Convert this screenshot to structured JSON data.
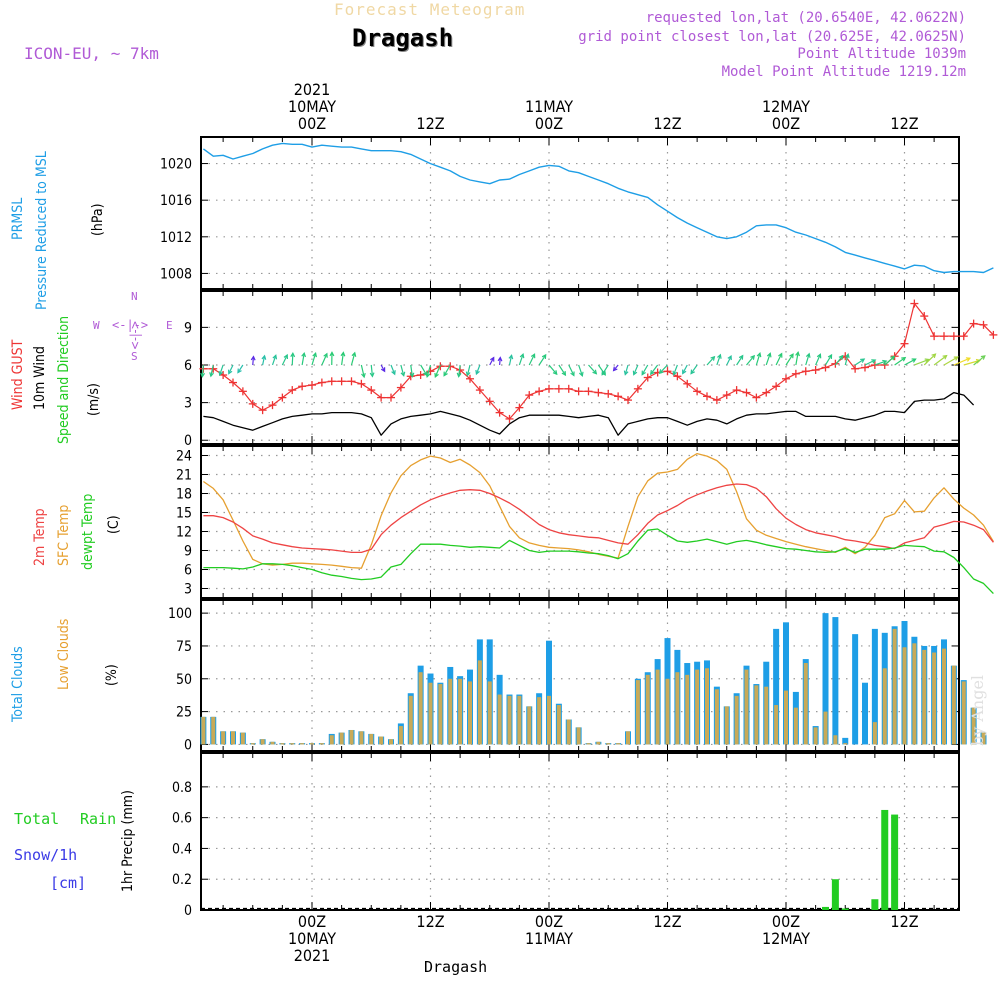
{
  "header": {
    "title": "Forecast Meteogram",
    "location": "Dragash",
    "model": "ICON-EU, ~ 7km",
    "requested": "requested lon,lat (20.6540E, 42.0622N)",
    "grid_point": "grid point closest lon,lat (20.625E, 42.0625N)",
    "point_altitude": "Point Altitude 1039m",
    "model_altitude": "Model Point Altitude 1219.12m",
    "watermark": "by Angel",
    "footer": "Dragash"
  },
  "colors": {
    "pressure": "#1e9ee6",
    "gust": "#ee3333",
    "wind": "#000000",
    "temp2m": "#ee4444",
    "sfc": "#e6a030",
    "dewpt": "#22cc22",
    "total_clouds": "#1e9ee6",
    "low_clouds": "#c8aa58",
    "rain": "#22cc22",
    "snow": "#3a3ae6",
    "purple": "#b05ad6"
  },
  "time_axis": {
    "top_labels": [
      {
        "hour": 0,
        "lines": [
          "2021",
          "10MAY",
          "00Z"
        ]
      },
      {
        "hour": 12,
        "lines": [
          "12Z"
        ]
      },
      {
        "hour": 24,
        "lines": [
          "11MAY",
          "00Z"
        ]
      },
      {
        "hour": 36,
        "lines": [
          "12Z"
        ]
      },
      {
        "hour": 48,
        "lines": [
          "12MAY",
          "00Z"
        ]
      },
      {
        "hour": 60,
        "lines": [
          "12Z"
        ]
      }
    ],
    "bottom_labels": [
      {
        "hour": 0,
        "lines": [
          "00Z",
          "10MAY",
          "2021"
        ]
      },
      {
        "hour": 12,
        "lines": [
          "12Z"
        ]
      },
      {
        "hour": 24,
        "lines": [
          "00Z",
          "11MAY"
        ]
      },
      {
        "hour": 36,
        "lines": [
          "12Z"
        ]
      },
      {
        "hour": 48,
        "lines": [
          "00Z",
          "12MAY"
        ]
      },
      {
        "hour": 60,
        "lines": [
          "12Z"
        ]
      }
    ]
  },
  "panel_labels": {
    "pressure": {
      "lines": [
        "PRMSL",
        "Pressure Reduced to MSL"
      ],
      "unit": "(hPa)"
    },
    "wind": {
      "gust": "Wind GUST",
      "wind10": "10m Wind",
      "speeddir": "Speed and Direction",
      "unit": "(m/s)",
      "compass": {
        "w": "W",
        "e": "E",
        "n": "N",
        "s": "S",
        "h": "<-|->",
        "v": "<-|->"
      }
    },
    "temp": {
      "t2m": "2m Temp",
      "sfc": "SFC Temp",
      "dewpt": "dewpt Temp",
      "unit": "(C)"
    },
    "clouds": {
      "total": "Total Clouds",
      "low": "Low Clouds",
      "unit": "(%)"
    },
    "precip": {
      "rain_total": "Total",
      "rain": "Rain",
      "snow": "Snow/1h",
      "snow_unit": "[cm]",
      "unit": "1hr Precip (mm)"
    }
  },
  "chart_data": [
    {
      "type": "line",
      "panel": "pressure",
      "title": "PRMSL Pressure Reduced to MSL",
      "ylabel": "(hPa)",
      "ylim": [
        1006.3,
        1022.9
      ],
      "yticks": [
        1008,
        1012,
        1016,
        1020
      ],
      "x_start": -11,
      "x_step": 1,
      "series": [
        {
          "name": "PRMSL",
          "values": [
            1021.6,
            1020.8,
            1020.9,
            1020.5,
            1020.8,
            1021.1,
            1021.6,
            1022.0,
            1022.2,
            1022.1,
            1022.1,
            1021.8,
            1022.0,
            1021.9,
            1021.8,
            1021.8,
            1021.6,
            1021.4,
            1021.4,
            1021.4,
            1021.3,
            1021.0,
            1020.5,
            1020.0,
            1019.6,
            1019.2,
            1018.6,
            1018.2,
            1018.0,
            1017.8,
            1018.2,
            1018.3,
            1018.8,
            1019.2,
            1019.6,
            1019.8,
            1019.7,
            1019.2,
            1019.0,
            1018.6,
            1018.2,
            1017.8,
            1017.3,
            1016.9,
            1016.6,
            1016.3,
            1015.5,
            1014.8,
            1014.1,
            1013.5,
            1013.0,
            1012.5,
            1012.0,
            1011.8,
            1012.0,
            1012.5,
            1013.2,
            1013.3,
            1013.3,
            1013.0,
            1012.5,
            1012.2,
            1011.8,
            1011.4,
            1010.9,
            1010.3,
            1010.0,
            1009.7,
            1009.4,
            1009.1,
            1008.8,
            1008.5,
            1008.9,
            1008.8,
            1008.3,
            1008.1,
            1008.2,
            1008.2,
            1008.2,
            1008.1,
            1008.6
          ]
        }
      ]
    },
    {
      "type": "line",
      "panel": "wind",
      "title": "Wind GUST / 10m Wind Speed and Direction",
      "ylabel": "(m/s)",
      "ylim": [
        -0.3,
        11.9
      ],
      "yticks": [
        0,
        3,
        6,
        9
      ],
      "x_start": -11,
      "x_step": 1,
      "series": [
        {
          "name": "Wind GUST",
          "values": [
            5.7,
            5.7,
            5.2,
            4.6,
            3.9,
            2.9,
            2.4,
            2.8,
            3.4,
            4.0,
            4.3,
            4.4,
            4.6,
            4.7,
            4.7,
            4.7,
            4.5,
            4.0,
            3.4,
            3.4,
            4.2,
            5.1,
            5.2,
            5.5,
            5.9,
            5.9,
            5.6,
            4.9,
            4.0,
            3.1,
            2.2,
            1.7,
            2.6,
            3.6,
            3.9,
            4.1,
            4.1,
            4.1,
            3.9,
            3.9,
            3.8,
            3.7,
            3.5,
            3.2,
            4.1,
            5.0,
            5.4,
            5.5,
            5.1,
            4.5,
            3.9,
            3.5,
            3.2,
            3.6,
            4.0,
            3.8,
            3.4,
            3.8,
            4.3,
            4.9,
            5.3,
            5.5,
            5.6,
            5.8,
            6.1,
            6.7,
            5.7,
            5.8,
            6.0,
            6.0,
            6.7,
            7.7,
            10.9,
            9.9,
            8.3,
            8.3,
            8.3,
            8.3,
            9.3,
            9.2,
            8.4
          ]
        },
        {
          "name": "10m Wind",
          "values": [
            1.9,
            1.8,
            1.5,
            1.2,
            1.0,
            0.8,
            1.1,
            1.4,
            1.7,
            1.9,
            2.0,
            2.1,
            2.1,
            2.2,
            2.2,
            2.2,
            2.1,
            1.8,
            0.4,
            1.3,
            1.7,
            1.9,
            2.0,
            2.1,
            2.3,
            2.1,
            1.9,
            1.6,
            1.2,
            0.8,
            0.5,
            1.3,
            1.8,
            2.0,
            2.0,
            2.0,
            2.0,
            1.9,
            1.8,
            1.9,
            2.0,
            1.8,
            0.4,
            1.3,
            1.5,
            1.7,
            1.8,
            1.8,
            1.5,
            1.2,
            1.5,
            1.7,
            1.6,
            1.3,
            1.7,
            2.0,
            2.1,
            2.1,
            2.2,
            2.3,
            2.3,
            1.9,
            1.9,
            1.9,
            1.9,
            1.7,
            1.6,
            1.8,
            2.0,
            2.3,
            2.3,
            2.2,
            3.1,
            3.2,
            3.2,
            3.3,
            3.8,
            3.6,
            2.8
          ]
        }
      ],
      "arrows": {
        "level": 6,
        "description": "wind direction barbs coloured by speed"
      }
    },
    {
      "type": "line",
      "panel": "temp",
      "title": "2m Temp / SFC Temp / dewpt Temp",
      "ylabel": "(C)",
      "ylim": [
        1.5,
        25.5
      ],
      "yticks": [
        3,
        6,
        9,
        12,
        15,
        18,
        21,
        24
      ],
      "x_start": -11,
      "x_step": 1,
      "series": [
        {
          "name": "2m Temp",
          "values": [
            14.5,
            14.5,
            14.2,
            13.5,
            12.5,
            11.3,
            10.8,
            10.2,
            9.9,
            9.6,
            9.4,
            9.3,
            9.2,
            9.1,
            8.9,
            8.7,
            8.7,
            9.2,
            11.5,
            13.0,
            14.2,
            15.2,
            16.2,
            17.0,
            17.6,
            18.1,
            18.5,
            18.6,
            18.5,
            18.0,
            17.3,
            16.5,
            15.5,
            14.3,
            13.1,
            12.3,
            11.8,
            11.5,
            11.3,
            11.1,
            11.0,
            10.6,
            10.2,
            10.0,
            11.5,
            13.3,
            14.6,
            15.3,
            16.1,
            17.1,
            17.8,
            18.4,
            18.9,
            19.3,
            19.5,
            19.4,
            18.8,
            17.5,
            15.6,
            14.1,
            13.1,
            12.3,
            11.8,
            11.5,
            11.2,
            10.7,
            10.5,
            10.2,
            9.8,
            9.6,
            9.3,
            10.2,
            10.6,
            11.0,
            12.7,
            13.1,
            13.6,
            13.5,
            13.0,
            12.3,
            10.3
          ]
        },
        {
          "name": "SFC Temp",
          "values": [
            19.9,
            18.8,
            17.0,
            13.8,
            10.5,
            7.6,
            6.9,
            6.7,
            6.8,
            7.0,
            7.0,
            6.9,
            6.8,
            6.7,
            6.5,
            6.3,
            6.2,
            9.9,
            14.5,
            18.1,
            20.8,
            22.4,
            23.3,
            23.9,
            23.6,
            22.9,
            23.4,
            22.5,
            21.3,
            19.2,
            16.0,
            12.8,
            11.0,
            10.2,
            9.8,
            9.5,
            9.4,
            9.3,
            9.1,
            8.8,
            8.4,
            8.1,
            7.8,
            12.8,
            17.5,
            20.0,
            21.2,
            21.4,
            21.8,
            23.4,
            24.3,
            23.9,
            23.2,
            21.8,
            18.3,
            14.0,
            12.2,
            11.4,
            10.9,
            10.4,
            10.0,
            9.6,
            9.3,
            9.0,
            8.7,
            9.5,
            8.5,
            9.5,
            11.4,
            14.2,
            14.8,
            16.9,
            15.1,
            15.2,
            17.3,
            18.9,
            17.1,
            15.7,
            14.6,
            13.0,
            10.4
          ]
        },
        {
          "name": "dewpt Temp",
          "values": [
            6.3,
            6.3,
            6.3,
            6.2,
            6.1,
            6.4,
            6.9,
            6.9,
            6.8,
            6.6,
            6.3,
            6.0,
            5.5,
            5.1,
            4.9,
            4.6,
            4.4,
            4.5,
            4.8,
            6.4,
            6.8,
            8.5,
            10.0,
            10.0,
            10.0,
            9.8,
            9.7,
            9.5,
            9.6,
            9.5,
            9.4,
            10.6,
            9.8,
            9.0,
            8.7,
            8.9,
            8.9,
            8.9,
            8.8,
            8.6,
            8.5,
            8.2,
            7.7,
            8.5,
            10.5,
            12.2,
            12.4,
            11.4,
            10.5,
            10.3,
            10.5,
            10.8,
            10.4,
            10.0,
            10.4,
            10.6,
            10.3,
            9.9,
            9.6,
            9.3,
            9.2,
            9.0,
            8.8,
            8.7,
            8.8,
            9.3,
            8.7,
            9.2,
            9.2,
            9.2,
            9.4,
            9.8,
            9.7,
            9.6,
            8.9,
            8.8,
            7.9,
            6.3,
            4.5,
            3.8,
            2.2
          ]
        }
      ]
    },
    {
      "type": "bar",
      "panel": "clouds",
      "title": "Total Clouds / Low Clouds",
      "ylabel": "(%)",
      "ylim": [
        -5,
        110
      ],
      "yticks": [
        0,
        25,
        50,
        75,
        100
      ],
      "x_start": -11,
      "x_step": 1,
      "series": [
        {
          "name": "Total Clouds",
          "values": [
            21,
            21,
            10,
            10,
            9,
            1,
            4,
            2,
            1,
            1,
            1,
            1,
            1,
            8,
            9,
            11,
            10,
            8,
            6,
            4,
            16,
            39,
            60,
            54,
            47,
            59,
            52,
            57,
            80,
            80,
            53,
            38,
            38,
            29,
            39,
            79,
            31,
            19,
            13,
            1,
            2,
            1,
            1,
            10,
            50,
            55,
            65,
            81,
            72,
            62,
            63,
            64,
            44,
            29,
            39,
            60,
            46,
            63,
            88,
            93,
            40,
            65,
            14,
            100,
            97,
            5,
            84,
            47,
            88,
            85,
            90,
            94,
            82,
            75,
            75,
            80,
            60,
            49,
            28,
            9,
            0
          ]
        },
        {
          "name": "Low Clouds",
          "values": [
            21,
            21,
            10,
            10,
            9,
            1,
            4,
            2,
            1,
            1,
            1,
            1,
            1,
            7,
            9,
            11,
            10,
            8,
            6,
            4,
            14,
            37,
            55,
            47,
            46,
            50,
            50,
            48,
            64,
            48,
            38,
            37,
            37,
            29,
            36,
            37,
            30,
            19,
            13,
            1,
            2,
            1,
            1,
            10,
            49,
            53,
            57,
            50,
            55,
            53,
            57,
            58,
            42,
            29,
            37,
            57,
            45,
            44,
            30,
            41,
            28,
            62,
            13,
            25,
            7,
            1,
            0,
            0,
            17,
            58,
            88,
            74,
            77,
            72,
            70,
            73,
            60,
            48,
            28,
            9,
            0
          ]
        }
      ]
    },
    {
      "type": "bar",
      "panel": "precip",
      "title": "Total Rain / Snow/1h [cm]",
      "ylabel": "1hr Precip (mm)",
      "ylim": [
        0,
        1.02
      ],
      "yticks": [
        0,
        0.2,
        0.4,
        0.6,
        0.8
      ],
      "series": [
        {
          "name": "Total Rain",
          "points": [
            [
              52,
              0.02
            ],
            [
              53,
              0.2
            ],
            [
              54,
              0.01
            ],
            [
              57,
              0.07
            ],
            [
              58,
              0.65
            ],
            [
              59,
              0.62
            ]
          ]
        },
        {
          "name": "Snow/1h",
          "points": []
        }
      ]
    }
  ]
}
